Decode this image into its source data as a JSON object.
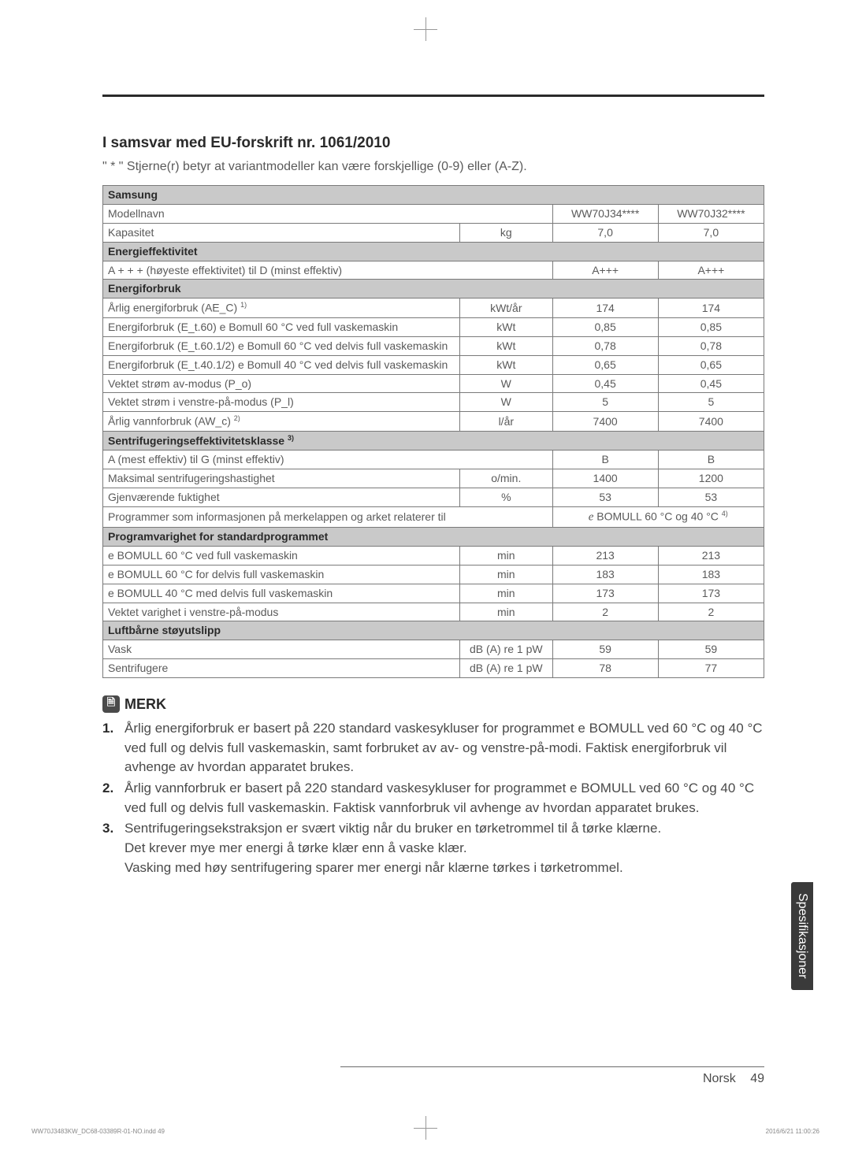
{
  "heading": "I samsvar med EU-forskrift nr. 1061/2010",
  "subtext": "\" * \" Stjerne(r) betyr at variantmodeller kan være forskjellige (0-9) eller (A-Z).",
  "brand_row": "Samsung",
  "model_label": "Modellnavn",
  "models": [
    "WW70J34****",
    "WW70J32****"
  ],
  "rows_top": [
    {
      "label": "Kapasitet",
      "unit": "kg",
      "v": [
        "7,0",
        "7,0"
      ]
    }
  ],
  "section_eff": "Energieffektivitet",
  "row_eff": {
    "label": "A + + + (høyeste effektivitet) til D (minst effektiv)",
    "v": [
      "A+++",
      "A+++"
    ]
  },
  "section_energy": "Energiforbruk",
  "rows_energy": [
    {
      "label": "Årlig energiforbruk (AE_C)",
      "sup": "1)",
      "unit": "kWt/år",
      "v": [
        "174",
        "174"
      ]
    },
    {
      "label": "Energiforbruk (E_t.60) e Bomull 60 °C ved full vaskemaskin",
      "unit": "kWt",
      "v": [
        "0,85",
        "0,85"
      ]
    },
    {
      "label": "Energiforbruk (E_t.60.1/2) e Bomull 60 °C ved delvis full vaskemaskin",
      "unit": "kWt",
      "v": [
        "0,78",
        "0,78"
      ]
    },
    {
      "label": "Energiforbruk (E_t.40.1/2) e Bomull 40 °C ved delvis full vaskemaskin",
      "unit": "kWt",
      "v": [
        "0,65",
        "0,65"
      ]
    },
    {
      "label": "Vektet strøm av-modus (P_o)",
      "unit": "W",
      "v": [
        "0,45",
        "0,45"
      ]
    },
    {
      "label": "Vektet strøm i venstre-på-modus (P_l)",
      "unit": "W",
      "v": [
        "5",
        "5"
      ]
    },
    {
      "label": "Årlig vannforbruk (AW_c)",
      "sup": "2)",
      "unit": "l/år",
      "v": [
        "7400",
        "7400"
      ]
    }
  ],
  "section_spin": "Sentrifugeringseffektivitetsklasse",
  "section_spin_sup": "3)",
  "row_spin": {
    "label": "A (mest effektiv) til G (minst effektiv)",
    "v": [
      "B",
      "B"
    ]
  },
  "rows_spin_extra": [
    {
      "label": "Maksimal sentrifugeringshastighet",
      "unit": "o/min.",
      "v": [
        "1400",
        "1200"
      ]
    },
    {
      "label": "Gjenværende fuktighet",
      "unit": "%",
      "v": [
        "53",
        "53"
      ]
    }
  ],
  "row_program_info_label": "Programmer som informasjonen på merkelappen og arket relaterer til",
  "row_program_info_value_pre": "e",
  "row_program_info_value": " BOMULL 60 °C og 40 °C",
  "row_program_info_value_sup": "4)",
  "section_duration": "Programvarighet for standardprogrammet",
  "rows_duration": [
    {
      "label": "e BOMULL 60 °C ved full vaskemaskin",
      "unit": "min",
      "v": [
        "213",
        "213"
      ]
    },
    {
      "label": "e BOMULL 60 °C for delvis full vaskemaskin",
      "unit": "min",
      "v": [
        "183",
        "183"
      ]
    },
    {
      "label": "e BOMULL 40 °C med delvis full vaskemaskin",
      "unit": "min",
      "v": [
        "173",
        "173"
      ]
    },
    {
      "label": "Vektet varighet i venstre-på-modus",
      "unit": "min",
      "v": [
        "2",
        "2"
      ]
    }
  ],
  "section_noise": "Luftbårne støyutslipp",
  "rows_noise": [
    {
      "label": "Vask",
      "unit": "dB (A) re 1 pW",
      "v": [
        "59",
        "59"
      ]
    },
    {
      "label": "Sentrifugere",
      "unit": "dB (A) re 1 pW",
      "v": [
        "78",
        "77"
      ]
    }
  ],
  "merk_label": "MERK",
  "notes": [
    "Årlig energiforbruk er basert på 220 standard vaskesykluser for programmet e BOMULL ved 60 °C og 40 °C ved full og delvis full vaskemaskin, samt forbruket av av- og venstre-på-modi. Faktisk energiforbruk vil avhenge av hvordan apparatet brukes.",
    "Årlig vannforbruk er basert på 220 standard vaskesykluser for programmet e BOMULL ved 60 °C og 40 °C ved full og delvis full vaskemaskin. Faktisk vannforbruk vil avhenge av hvordan apparatet brukes.",
    "Sentrifugeringsekstraksjon er svært viktig når du bruker en tørketrommel til å tørke klærne.\nDet krever mye mer energi å tørke klær enn å vaske klær.\nVasking med høy sentrifugering sparer mer energi når klærne tørkes i tørketrommel."
  ],
  "side_tab": "Spesifikasjoner",
  "footer_lang": "Norsk",
  "footer_page": "49",
  "imprint_left": "WW70J3483KW_DC68-03389R-01-NO.indd   49",
  "imprint_right": "2016/6/21   11:00:26"
}
